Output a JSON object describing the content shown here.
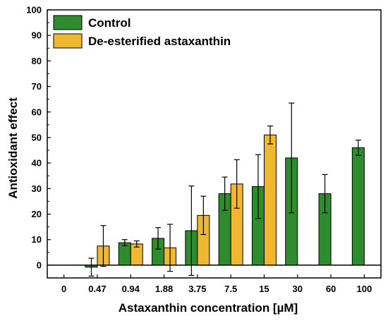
{
  "chart_data": {
    "type": "bar",
    "xlabel": "Astaxanthin concentration [µM]",
    "ylabel": "Antioxidant effect",
    "ylim": [
      -5,
      100
    ],
    "yticks": [
      0,
      10,
      20,
      30,
      40,
      50,
      60,
      70,
      80,
      90,
      100
    ],
    "x_tick_labels": [
      "0",
      "0.47",
      "0.94",
      "1.88",
      "3.75",
      "7.5",
      "15",
      "30",
      "60",
      "100"
    ],
    "categories": [
      "0.47",
      "0.94",
      "1.88",
      "3.75",
      "7.5",
      "15",
      "30",
      "60",
      "100"
    ],
    "legend_position": "top-left",
    "grid": false,
    "series": [
      {
        "name": "Control",
        "color": "#2e8b2e",
        "values": [
          -0.8,
          8.8,
          10.5,
          13.5,
          28,
          30.8,
          42,
          28,
          46
        ],
        "errors": [
          3.5,
          1.2,
          4.2,
          17.5,
          6.5,
          12.5,
          21.5,
          7.5,
          3
        ]
      },
      {
        "name": "De-esterified astaxanthin",
        "color": "#f0b830",
        "values": [
          7.5,
          8.3,
          6.8,
          19.5,
          31.8,
          51,
          null,
          null,
          null
        ],
        "errors": [
          8,
          1.2,
          9.2,
          7.5,
          9.5,
          3.5,
          null,
          null,
          null
        ]
      }
    ]
  }
}
